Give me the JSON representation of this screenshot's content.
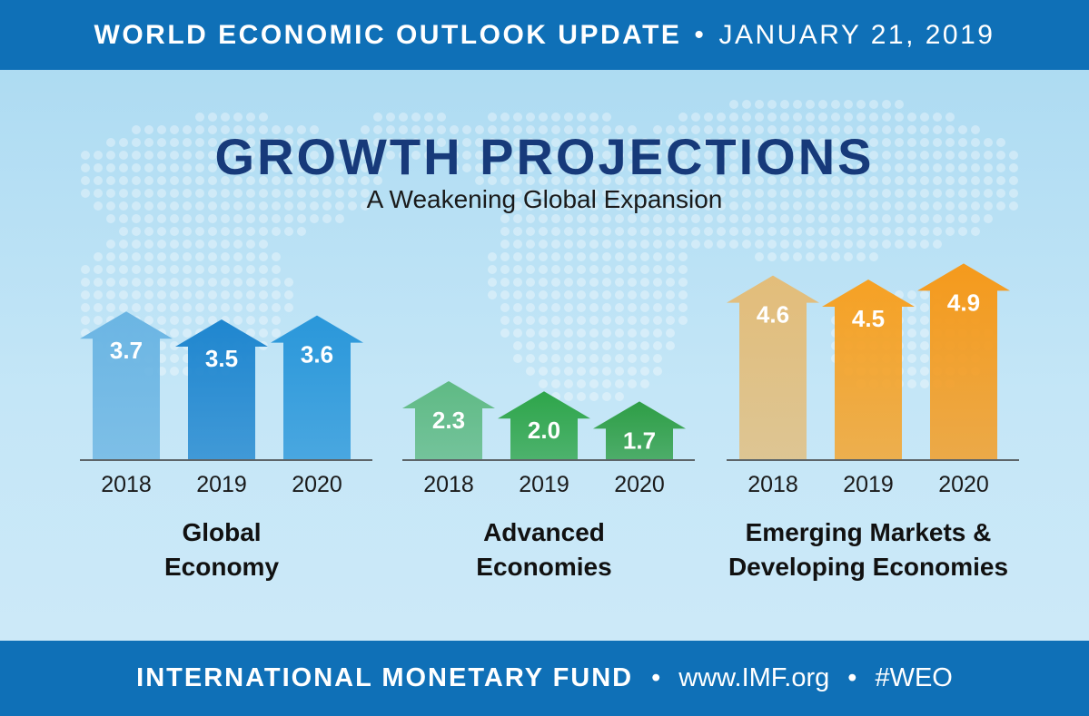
{
  "header": {
    "title": "WORLD ECONOMIC OUTLOOK UPDATE",
    "separator": "•",
    "date": "JANUARY 21, 2019"
  },
  "footer": {
    "org": "INTERNATIONAL MONETARY FUND",
    "separator": "•",
    "url": "www.IMF.org",
    "hashtag": "#WEO"
  },
  "colors": {
    "bar_blue": "#0f70b7",
    "title_navy": "#173a7a",
    "global": [
      "#6bb5e3",
      "#1f86cf",
      "#2a97da"
    ],
    "advanced": [
      "#5fba84",
      "#2ea54a",
      "#2e9e46"
    ],
    "emerging": [
      "#e3bd7a",
      "#f6a124",
      "#f59a1c"
    ]
  },
  "chart_data": {
    "type": "bar",
    "title": "GROWTH PROJECTIONS",
    "subtitle": "A Weakening Global Expansion",
    "categories": [
      "2018",
      "2019",
      "2020"
    ],
    "series": [
      {
        "name_lines": [
          "Global",
          "Economy"
        ],
        "values": [
          "3.7",
          "3.5",
          "3.6"
        ]
      },
      {
        "name_lines": [
          "Advanced",
          "Economies"
        ],
        "values": [
          "2.3",
          "2.0",
          "1.7"
        ]
      },
      {
        "name_lines": [
          "Emerging Markets &",
          "Developing Economies"
        ],
        "values": [
          "4.6",
          "4.5",
          "4.9"
        ]
      }
    ],
    "ylim": [
      0,
      4.9
    ]
  }
}
